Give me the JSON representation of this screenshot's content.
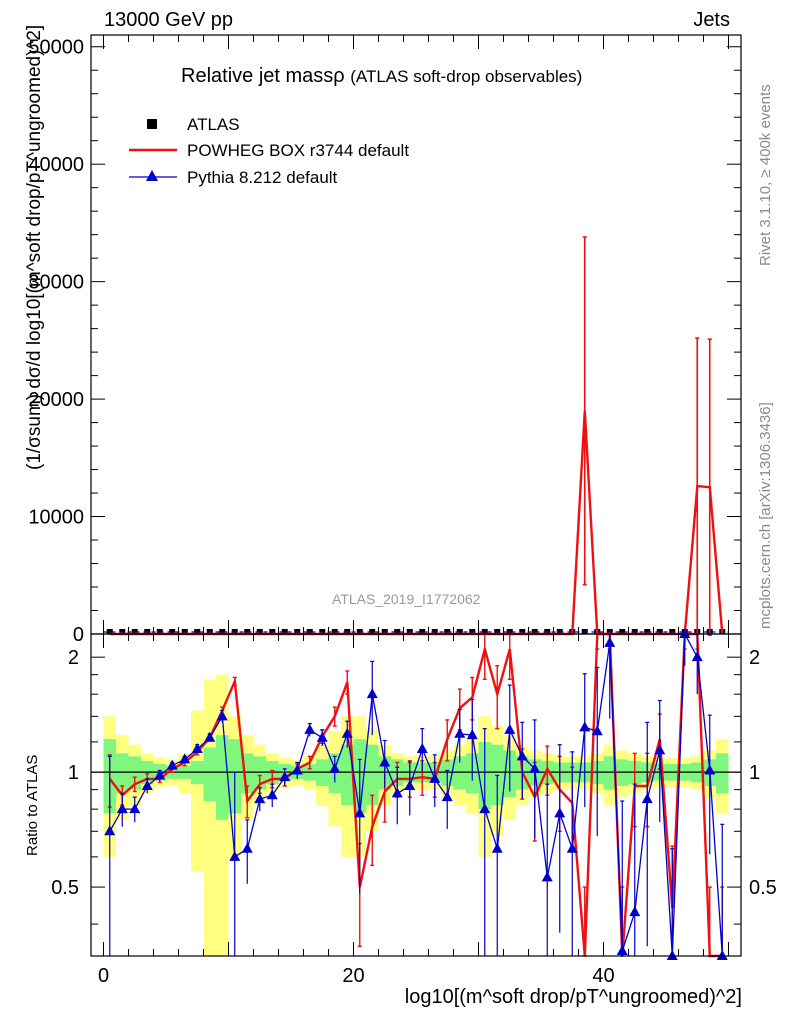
{
  "header": {
    "left": "13000 GeV pp",
    "right": "Jets",
    "side_top": "Rivet 3.1.10, ≥ 400k events",
    "side_bottom": "mcplots.cern.ch [arXiv:1306.3436]"
  },
  "chart_data": {
    "type": "line",
    "title": "Relative jet massρ",
    "subtitle": "(ATLAS soft-drop observables)",
    "analysis_label": "ATLAS_2019_I1772062",
    "ylabel": "(1/σsum) dσ/d log10[(m^soft drop/pT^ungroomed)^2]",
    "xlabel": "log10[(m^soft drop/pT^ungroomed)^2]",
    "ratio_ylabel": "Ratio to ATLAS",
    "xlim": [
      -1,
      51
    ],
    "ylim": [
      0,
      51000
    ],
    "ratio_ylim": [
      0.33,
      2.3
    ],
    "x_ticks": [
      "0",
      "20",
      "40"
    ],
    "y_ticks": [
      "0",
      "10000",
      "20000",
      "30000",
      "40000",
      "50000"
    ],
    "ratio_ticks": [
      "0.5",
      "1",
      "2"
    ],
    "legend": [
      {
        "label": "ATLAS",
        "color": "#000000",
        "marker": "square"
      },
      {
        "label": "POWHEG BOX r3744 default",
        "color": "#ee1111",
        "marker": "line"
      },
      {
        "label": "Pythia 8.212 default",
        "color": "#0000cc",
        "marker": "triangle"
      }
    ],
    "colors": {
      "data": "#000000",
      "powheg": "#ee1111",
      "pythia": "#0000cc",
      "band_inner": "#7ff77f",
      "band_outer": "#ffff80"
    },
    "x": [
      0.5,
      1.5,
      2.5,
      3.5,
      4.5,
      5.5,
      6.5,
      7.5,
      8.5,
      9.5,
      10.5,
      11.5,
      12.5,
      13.5,
      14.5,
      15.5,
      16.5,
      17.5,
      18.5,
      19.5,
      20.5,
      21.5,
      22.5,
      23.5,
      24.5,
      25.5,
      26.5,
      27.5,
      28.5,
      29.5,
      30.5,
      31.5,
      32.5,
      33.5,
      34.5,
      35.5,
      36.5,
      37.5,
      38.5,
      39.5,
      40.5,
      41.5,
      42.5,
      43.5,
      44.5,
      45.5,
      46.5,
      47.5,
      48.5,
      49.5
    ],
    "main_series": [
      {
        "name": "POWHEG BOX r3744 default",
        "values": [
          0,
          0,
          0,
          0,
          0,
          0,
          0,
          0,
          0,
          0,
          0,
          0,
          0,
          0,
          0,
          0,
          0,
          0,
          0,
          0,
          0,
          0,
          0,
          0,
          0,
          0,
          0,
          0,
          0,
          0,
          0,
          0,
          0,
          0,
          0,
          0,
          0,
          0,
          19000,
          0,
          0,
          0,
          0,
          0,
          0,
          0,
          0,
          12600,
          12500,
          0
        ],
        "err": [
          0,
          0,
          0,
          0,
          0,
          0,
          0,
          0,
          0,
          0,
          0,
          0,
          0,
          0,
          0,
          0,
          0,
          0,
          0,
          0,
          0,
          0,
          0,
          0,
          0,
          0,
          0,
          0,
          0,
          0,
          0,
          0,
          0,
          0,
          0,
          0,
          0,
          0,
          14800,
          0,
          0,
          0,
          0,
          0,
          0,
          0,
          0,
          12600,
          12600,
          0
        ]
      }
    ],
    "ratio_series": [
      {
        "name": "POWHEG BOX r3744 default",
        "values": [
          0.96,
          0.87,
          0.93,
          0.96,
          0.96,
          1.02,
          1.06,
          1.13,
          1.23,
          1.45,
          1.73,
          0.84,
          0.93,
          0.96,
          0.96,
          1.02,
          1.06,
          1.24,
          1.4,
          1.72,
          0.5,
          0.72,
          0.89,
          0.96,
          0.96,
          0.97,
          0.96,
          1.22,
          1.47,
          1.57,
          2.1,
          1.6,
          2.1,
          1.0,
          0.86,
          1.02,
          0.9,
          0.83,
          0.3,
          2.3,
          2.3,
          0.3,
          0.92,
          0.92,
          1.22,
          0.44,
          2.3,
          2.3,
          0.3,
          0.3
        ],
        "err": [
          0.15,
          0.05,
          0.04,
          0.03,
          0.02,
          0.02,
          0.02,
          0.02,
          0.02,
          0.03,
          0.04,
          0.08,
          0.05,
          0.05,
          0.04,
          0.03,
          0.04,
          0.05,
          0.08,
          0.12,
          0.15,
          0.15,
          0.15,
          0.1,
          0.1,
          0.1,
          0.1,
          0.15,
          0.18,
          0.2,
          0.35,
          0.3,
          0.35,
          0.15,
          0.2,
          0.15,
          0.2,
          0.2,
          0.2,
          0.2,
          0.2,
          0.2,
          0.2,
          0.2,
          0.2,
          0.2,
          0.2,
          0.2,
          0.2,
          0.2
        ]
      },
      {
        "name": "Pythia 8.212 default",
        "values": [
          0.7,
          0.8,
          0.8,
          0.92,
          0.98,
          1.04,
          1.08,
          1.15,
          1.23,
          1.4,
          0.6,
          0.63,
          0.85,
          0.87,
          0.97,
          1.01,
          1.29,
          1.23,
          1.02,
          1.26,
          0.78,
          1.6,
          1.06,
          0.88,
          0.92,
          1.15,
          0.96,
          0.86,
          1.26,
          1.25,
          0.8,
          0.63,
          1.29,
          1.1,
          1.02,
          0.53,
          0.78,
          0.63,
          1.31,
          1.28,
          2.18,
          0.34,
          0.43,
          0.85,
          1.14,
          0.33,
          2.3,
          2.0,
          1.01,
          0.33
        ],
        "err": [
          0.4,
          0.08,
          0.06,
          0.04,
          0.03,
          0.02,
          0.02,
          0.03,
          0.03,
          0.05,
          0.4,
          0.12,
          0.06,
          0.06,
          0.05,
          0.05,
          0.05,
          0.06,
          0.08,
          0.1,
          0.3,
          0.35,
          0.15,
          0.15,
          0.15,
          0.15,
          0.15,
          0.15,
          0.2,
          0.3,
          0.5,
          0.35,
          0.4,
          0.25,
          0.35,
          0.4,
          0.4,
          0.5,
          0.5,
          0.6,
          0.8,
          0.5,
          0.5,
          0.5,
          0.4,
          0.3,
          0.4,
          0.4,
          0.4,
          0.4
        ]
      }
    ],
    "band_inner": [
      0.22,
      0.12,
      0.1,
      0.07,
      0.05,
      0.04,
      0.04,
      0.07,
      0.16,
      0.25,
      0.22,
      0.12,
      0.1,
      0.07,
      0.05,
      0.04,
      0.05,
      0.08,
      0.12,
      0.18,
      0.22,
      0.18,
      0.1,
      0.08,
      0.06,
      0.06,
      0.06,
      0.08,
      0.1,
      0.12,
      0.2,
      0.18,
      0.14,
      0.1,
      0.08,
      0.07,
      0.06,
      0.06,
      0.06,
      0.07,
      0.1,
      0.08,
      0.07,
      0.06,
      0.05,
      0.05,
      0.05,
      0.06,
      0.08,
      0.12
    ],
    "band_outer": [
      0.4,
      0.25,
      0.18,
      0.12,
      0.09,
      0.08,
      0.12,
      0.45,
      0.75,
      0.8,
      0.4,
      0.25,
      0.18,
      0.12,
      0.09,
      0.08,
      0.1,
      0.18,
      0.28,
      0.4,
      0.4,
      0.3,
      0.18,
      0.12,
      0.1,
      0.1,
      0.1,
      0.14,
      0.18,
      0.22,
      0.4,
      0.32,
      0.25,
      0.18,
      0.14,
      0.12,
      0.1,
      0.1,
      0.1,
      0.12,
      0.18,
      0.14,
      0.12,
      0.1,
      0.09,
      0.09,
      0.09,
      0.1,
      0.14,
      0.22
    ]
  }
}
